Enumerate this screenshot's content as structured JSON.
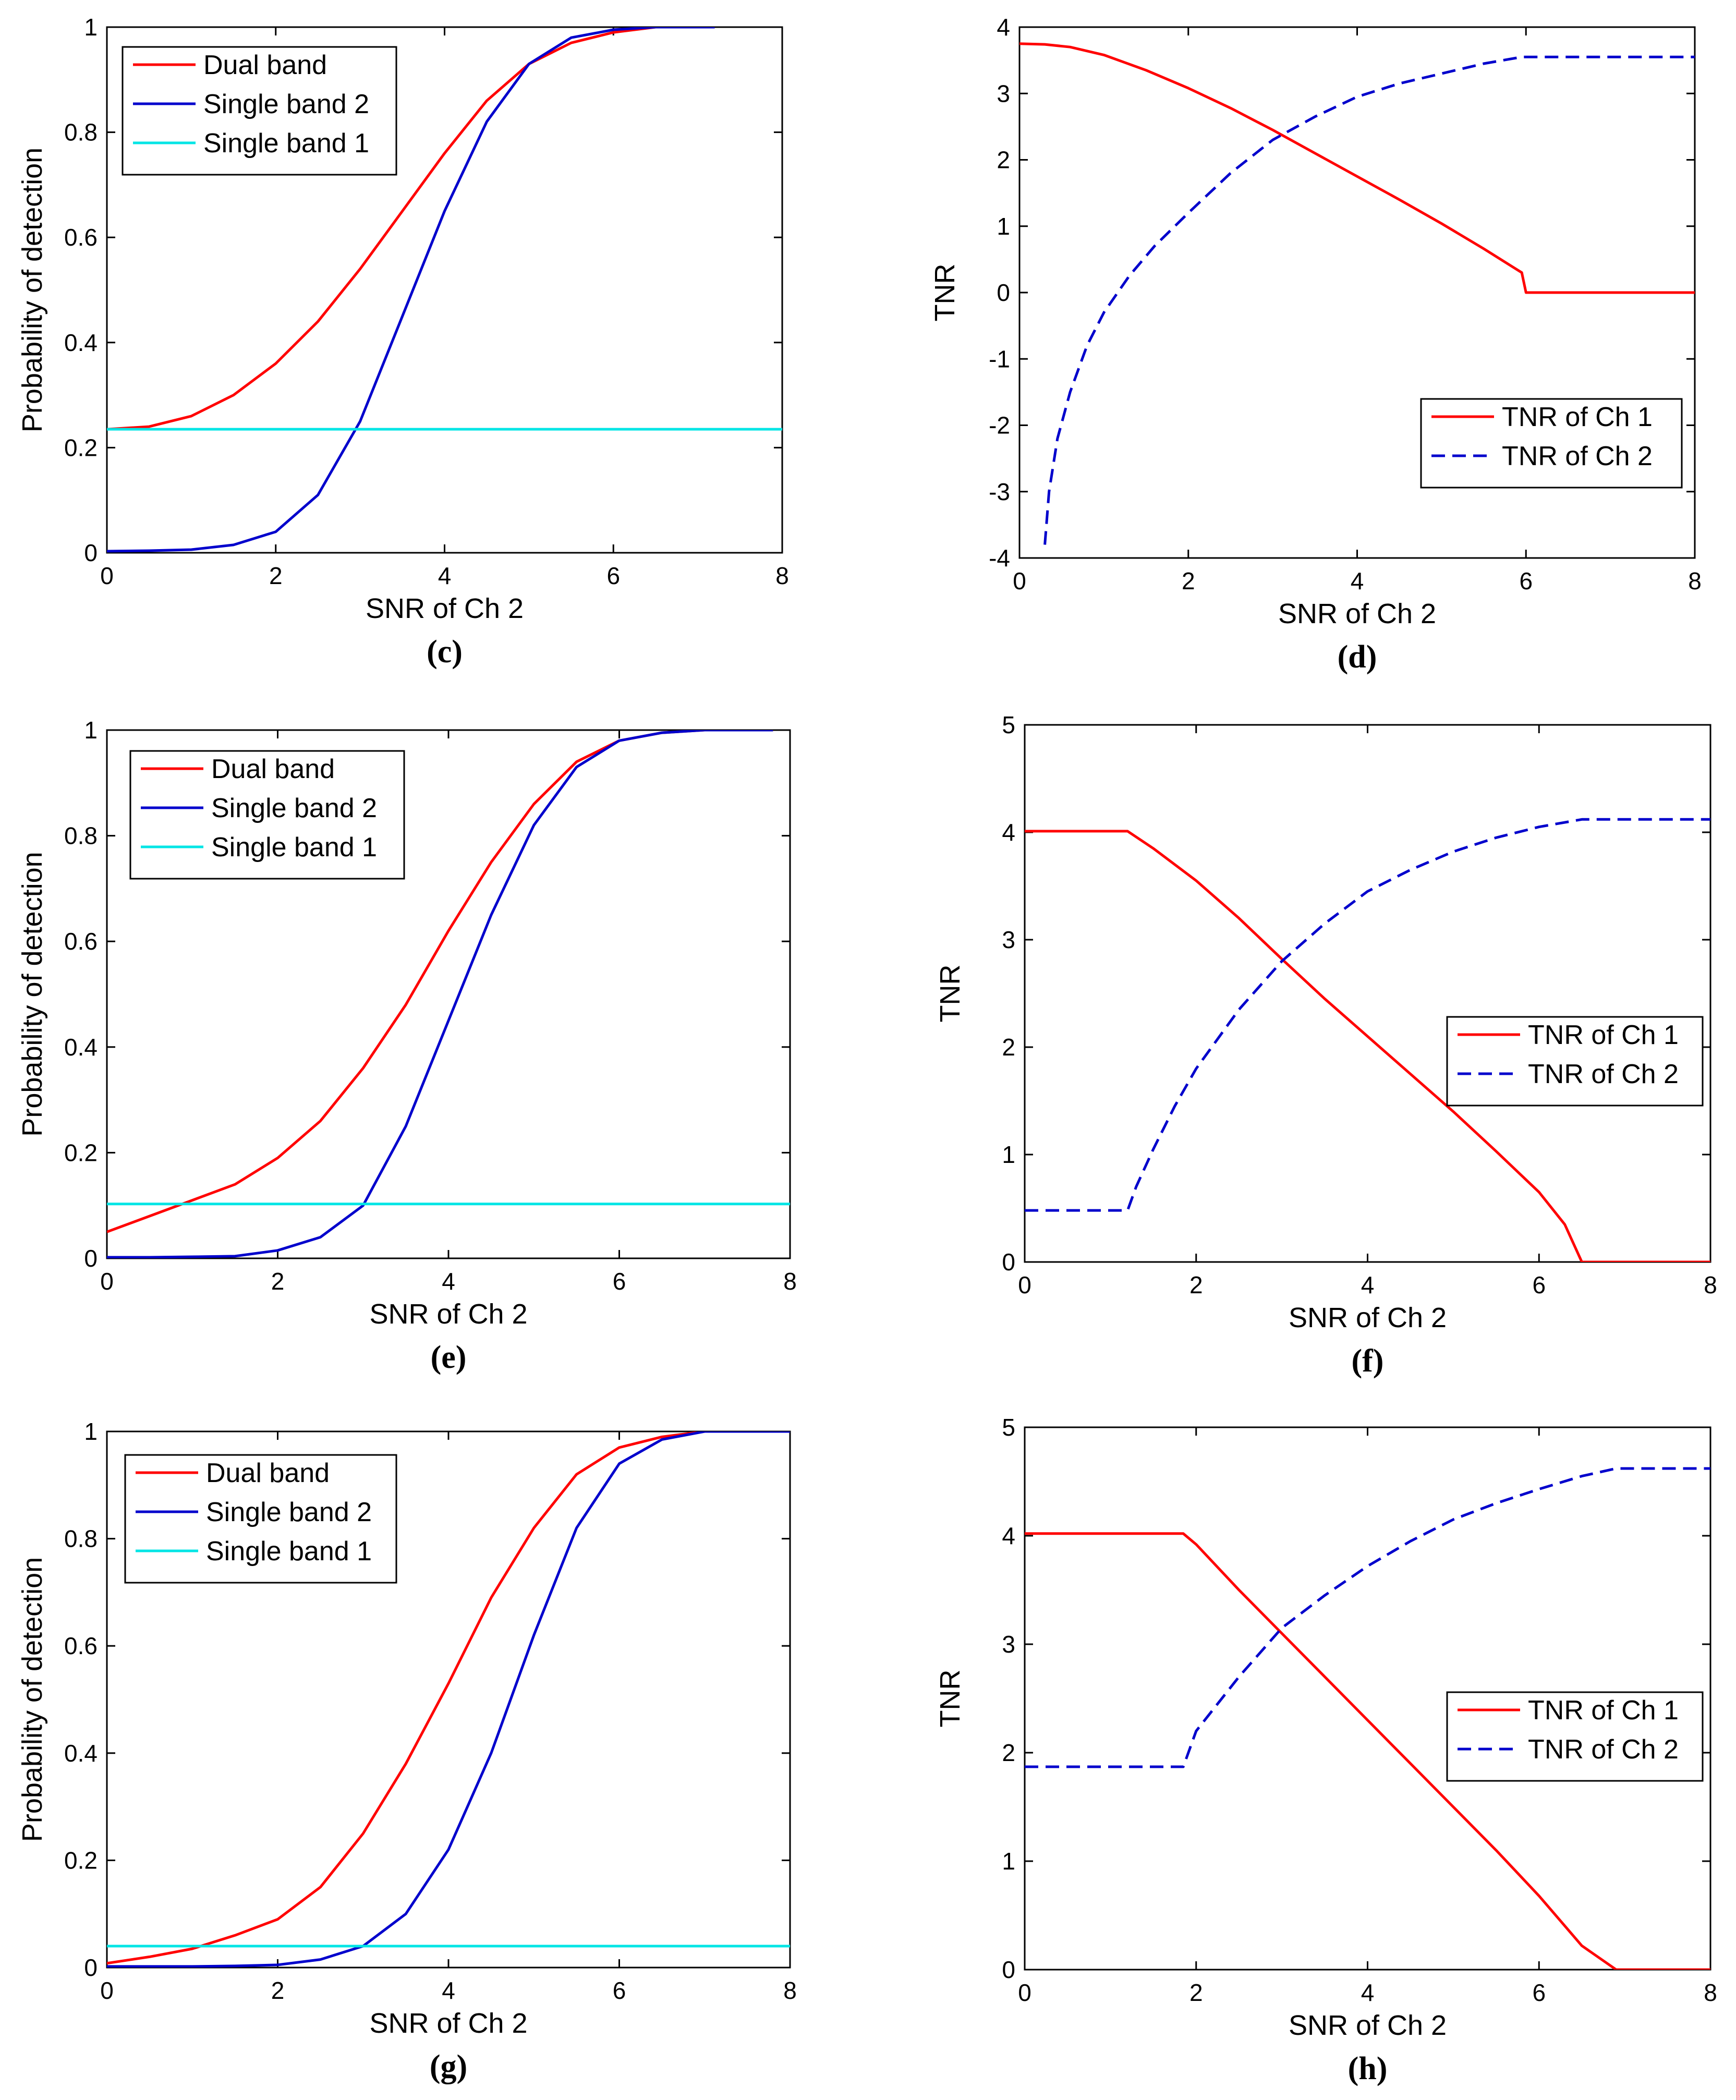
{
  "colors": {
    "red": "#ff0000",
    "blue": "#0000cc",
    "cyan": "#00e5e5",
    "dashed_blue": "#0000cc"
  },
  "chart_data": [
    {
      "id": "c",
      "type": "line",
      "caption": "(c)",
      "xlabel": "SNR of Ch 2",
      "ylabel": "Probability of detection",
      "xlim": [
        0,
        8
      ],
      "ylim": [
        0,
        1
      ],
      "xticks": [
        "0",
        "2",
        "4",
        "6",
        "8"
      ],
      "yticks": [
        "0",
        "0.2",
        "0.4",
        "0.6",
        "0.8",
        "1"
      ],
      "legend_position": "top-left",
      "series": [
        {
          "name": "Dual band",
          "color": "red",
          "style": "solid",
          "x": [
            0,
            0.5,
            1,
            1.5,
            2,
            2.5,
            3,
            3.5,
            4,
            4.5,
            5,
            5.5,
            6,
            6.5,
            7,
            7.2
          ],
          "y": [
            0.235,
            0.24,
            0.26,
            0.3,
            0.36,
            0.44,
            0.54,
            0.65,
            0.76,
            0.86,
            0.93,
            0.97,
            0.99,
            1,
            1,
            1
          ]
        },
        {
          "name": "Single band 2",
          "color": "blue",
          "style": "solid",
          "x": [
            0,
            0.5,
            1,
            1.5,
            2,
            2.5,
            3,
            3.5,
            4,
            4.5,
            5,
            5.5,
            6,
            6.5,
            7,
            7.2
          ],
          "y": [
            0.003,
            0.004,
            0.006,
            0.015,
            0.04,
            0.11,
            0.25,
            0.45,
            0.65,
            0.82,
            0.93,
            0.98,
            0.995,
            1,
            1,
            1
          ]
        },
        {
          "name": "Single band 1",
          "color": "cyan",
          "style": "solid",
          "x": [
            0,
            8
          ],
          "y": [
            0.235,
            0.235
          ]
        }
      ]
    },
    {
      "id": "d",
      "type": "line",
      "caption": "(d)",
      "xlabel": "SNR of Ch 2",
      "ylabel": "TNR",
      "xlim": [
        0,
        8
      ],
      "ylim": [
        -4,
        4
      ],
      "xticks": [
        "0",
        "2",
        "4",
        "6",
        "8"
      ],
      "yticks": [
        "-4",
        "-3",
        "-2",
        "-1",
        "0",
        "1",
        "2",
        "3",
        "4"
      ],
      "legend_position": "bottom-right",
      "series": [
        {
          "name": "TNR of Ch 1",
          "color": "red",
          "style": "solid",
          "x": [
            0,
            0.3,
            0.6,
            1,
            1.5,
            2,
            2.5,
            3,
            3.5,
            4,
            4.5,
            5,
            5.5,
            5.95,
            6,
            7,
            8
          ],
          "y": [
            3.75,
            3.74,
            3.7,
            3.58,
            3.35,
            3.08,
            2.78,
            2.45,
            2.1,
            1.75,
            1.4,
            1.04,
            0.66,
            0.3,
            0,
            0,
            0
          ]
        },
        {
          "name": "TNR of Ch 2",
          "color": "dashed_blue",
          "style": "dashed",
          "x": [
            0.3,
            0.35,
            0.45,
            0.6,
            0.8,
            1,
            1.3,
            1.6,
            2,
            2.5,
            3,
            3.5,
            4,
            4.5,
            5,
            5.5,
            5.95,
            6,
            7,
            8
          ],
          "y": [
            -3.8,
            -3.0,
            -2.2,
            -1.5,
            -0.8,
            -0.3,
            0.25,
            0.7,
            1.2,
            1.8,
            2.3,
            2.65,
            2.95,
            3.15,
            3.3,
            3.45,
            3.55,
            3.55,
            3.55,
            3.55
          ]
        }
      ]
    },
    {
      "id": "e",
      "type": "line",
      "caption": "(e)",
      "xlabel": "SNR of Ch 2",
      "ylabel": "Probability of detection",
      "xlim": [
        0,
        8
      ],
      "ylim": [
        0,
        1
      ],
      "xticks": [
        "0",
        "2",
        "4",
        "6",
        "8"
      ],
      "yticks": [
        "0",
        "0.2",
        "0.4",
        "0.6",
        "0.8",
        "1"
      ],
      "legend_position": "top-left",
      "series": [
        {
          "name": "Dual band",
          "color": "red",
          "style": "solid",
          "x": [
            0,
            0.5,
            1,
            1.5,
            2,
            2.5,
            3,
            3.5,
            4,
            4.5,
            5,
            5.5,
            6,
            6.5,
            7,
            7.5,
            7.8
          ],
          "y": [
            0.05,
            0.08,
            0.11,
            0.14,
            0.19,
            0.26,
            0.36,
            0.48,
            0.62,
            0.75,
            0.86,
            0.94,
            0.98,
            0.995,
            1,
            1,
            1
          ]
        },
        {
          "name": "Single band 2",
          "color": "blue",
          "style": "solid",
          "x": [
            0,
            0.5,
            1,
            1.5,
            2,
            2.5,
            3,
            3.5,
            4,
            4.5,
            5,
            5.5,
            6,
            6.5,
            7,
            7.5,
            7.8
          ],
          "y": [
            0.002,
            0.002,
            0.003,
            0.004,
            0.015,
            0.04,
            0.1,
            0.25,
            0.45,
            0.65,
            0.82,
            0.93,
            0.98,
            0.995,
            1,
            1,
            1
          ]
        },
        {
          "name": "Single band 1",
          "color": "cyan",
          "style": "solid",
          "x": [
            0,
            8
          ],
          "y": [
            0.103,
            0.103
          ]
        }
      ]
    },
    {
      "id": "f",
      "type": "line",
      "caption": "(f)",
      "xlabel": "SNR of Ch 2",
      "ylabel": "TNR",
      "xlim": [
        0,
        8
      ],
      "ylim": [
        0,
        5
      ],
      "xticks": [
        "0",
        "2",
        "4",
        "6",
        "8"
      ],
      "yticks": [
        "0",
        "1",
        "2",
        "3",
        "4",
        "5"
      ],
      "legend_position": "right",
      "series": [
        {
          "name": "TNR of Ch 1",
          "color": "red",
          "style": "solid",
          "x": [
            0,
            1.2,
            1.5,
            2,
            2.5,
            3,
            3.5,
            4,
            4.5,
            5,
            5.5,
            6,
            6.3,
            6.5,
            7,
            8
          ],
          "y": [
            4.01,
            4.01,
            3.85,
            3.55,
            3.2,
            2.82,
            2.45,
            2.1,
            1.75,
            1.4,
            1.03,
            0.65,
            0.35,
            0,
            0,
            0
          ]
        },
        {
          "name": "TNR of Ch 2",
          "color": "dashed_blue",
          "style": "dashed",
          "x": [
            0,
            1.2,
            1.3,
            1.5,
            1.75,
            2,
            2.5,
            3,
            3.5,
            4,
            4.5,
            5,
            5.5,
            6,
            6.5,
            7,
            8
          ],
          "y": [
            0.48,
            0.48,
            0.7,
            1.05,
            1.45,
            1.8,
            2.35,
            2.8,
            3.15,
            3.45,
            3.65,
            3.82,
            3.95,
            4.05,
            4.12,
            4.12,
            4.12
          ]
        }
      ]
    },
    {
      "id": "g",
      "type": "line",
      "caption": "(g)",
      "xlabel": "SNR of Ch 2",
      "ylabel": "Probability of detection",
      "xlim": [
        0,
        8
      ],
      "ylim": [
        0,
        1
      ],
      "xticks": [
        "0",
        "2",
        "4",
        "6",
        "8"
      ],
      "yticks": [
        "0",
        "0.2",
        "0.4",
        "0.6",
        "0.8",
        "1"
      ],
      "legend_position": "top-left",
      "series": [
        {
          "name": "Dual band",
          "color": "red",
          "style": "solid",
          "x": [
            0,
            0.5,
            1,
            1.5,
            2,
            2.5,
            3,
            3.5,
            4,
            4.5,
            5,
            5.5,
            6,
            6.5,
            7,
            7.5,
            8
          ],
          "y": [
            0.008,
            0.02,
            0.035,
            0.06,
            0.09,
            0.15,
            0.25,
            0.38,
            0.53,
            0.69,
            0.82,
            0.92,
            0.97,
            0.99,
            1,
            1,
            1
          ]
        },
        {
          "name": "Single band 2",
          "color": "blue",
          "style": "solid",
          "x": [
            0,
            0.5,
            1,
            1.5,
            2,
            2.5,
            3,
            3.5,
            4,
            4.5,
            5,
            5.5,
            6,
            6.5,
            7,
            7.5,
            8
          ],
          "y": [
            0.002,
            0.002,
            0.002,
            0.003,
            0.005,
            0.015,
            0.04,
            0.1,
            0.22,
            0.4,
            0.62,
            0.82,
            0.94,
            0.985,
            1,
            1,
            1
          ]
        },
        {
          "name": "Single band 1",
          "color": "cyan",
          "style": "solid",
          "x": [
            0,
            8
          ],
          "y": [
            0.04,
            0.04
          ]
        }
      ]
    },
    {
      "id": "h",
      "type": "line",
      "caption": "(h)",
      "xlabel": "SNR of Ch 2",
      "ylabel": "TNR",
      "xlim": [
        0,
        8
      ],
      "ylim": [
        0,
        5
      ],
      "xticks": [
        "0",
        "2",
        "4",
        "6",
        "8"
      ],
      "yticks": [
        "0",
        "1",
        "2",
        "3",
        "4",
        "5"
      ],
      "legend_position": "right",
      "series": [
        {
          "name": "TNR of Ch 1",
          "color": "red",
          "style": "solid",
          "x": [
            0,
            1.85,
            2,
            2.5,
            3,
            3.5,
            4,
            4.5,
            5,
            5.5,
            6,
            6.5,
            6.9,
            7,
            8
          ],
          "y": [
            4.02,
            4.02,
            3.92,
            3.5,
            3.1,
            2.7,
            2.3,
            1.9,
            1.5,
            1.1,
            0.68,
            0.22,
            0,
            0,
            0
          ]
        },
        {
          "name": "TNR of Ch 2",
          "color": "dashed_blue",
          "style": "dashed",
          "x": [
            0,
            1.85,
            2,
            2.5,
            3,
            3.5,
            4,
            4.5,
            5,
            5.5,
            6,
            6.5,
            6.9,
            7,
            8
          ],
          "y": [
            1.87,
            1.87,
            2.2,
            2.7,
            3.15,
            3.45,
            3.72,
            3.95,
            4.15,
            4.3,
            4.43,
            4.55,
            4.62,
            4.62,
            4.62
          ]
        }
      ]
    }
  ]
}
